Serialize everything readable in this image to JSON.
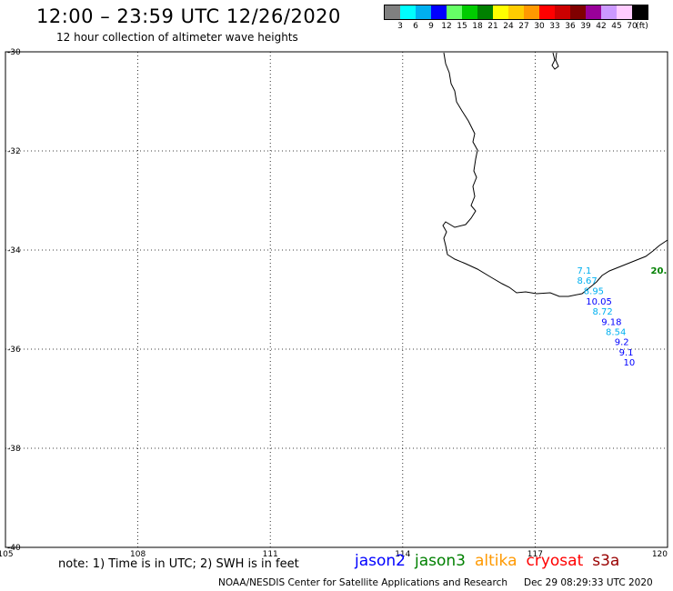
{
  "title": "12:00 – 23:59 UTC 12/26/2020",
  "subtitle": "12 hour collection of altimeter wave heights",
  "color_scale": {
    "unit": "(ft)",
    "colors": [
      "#808080",
      "#00ffff",
      "#00b0f0",
      "#0000ff",
      "#66ff66",
      "#00cc00",
      "#008000",
      "#ffff00",
      "#ffcc00",
      "#ff9900",
      "#ff0000",
      "#cc0000",
      "#800000",
      "#990099",
      "#cc99ff",
      "#ffccff",
      "#000000"
    ],
    "labels": [
      "3",
      "6",
      "9",
      "12",
      "15",
      "18",
      "21",
      "24",
      "27",
      "30",
      "33",
      "36",
      "39",
      "42",
      "45",
      "70"
    ]
  },
  "axes": {
    "lon_ticks": [
      "105",
      "108",
      "111",
      "114",
      "117",
      "120"
    ],
    "lat_ticks": [
      "-30",
      "-32",
      "-34",
      "-36",
      "-38",
      "-40"
    ]
  },
  "observations": [
    {
      "text": "7.1",
      "color": "#00b0f0",
      "lon": 117.95,
      "lat": -34.48
    },
    {
      "text": "20.",
      "color": "#008000",
      "lon": 119.62,
      "lat": -34.48,
      "size": 14
    },
    {
      "text": "8.67",
      "color": "#00b0f0",
      "lon": 117.95,
      "lat": -34.68
    },
    {
      "text": "8.95",
      "color": "#00b0f0",
      "lon": 118.1,
      "lat": -34.89
    },
    {
      "text": "10.05",
      "color": "#0000ff",
      "lon": 118.15,
      "lat": -35.1
    },
    {
      "text": "8.72",
      "color": "#00b0f0",
      "lon": 118.3,
      "lat": -35.3
    },
    {
      "text": "9.18",
      "color": "#0000ff",
      "lon": 118.5,
      "lat": -35.51
    },
    {
      "text": "8.54",
      "color": "#00b0f0",
      "lon": 118.6,
      "lat": -35.72
    },
    {
      "text": "9.2",
      "color": "#0000ff",
      "lon": 118.8,
      "lat": -35.92
    },
    {
      "text": "9.1",
      "color": "#0000ff",
      "lon": 118.9,
      "lat": -36.13
    },
    {
      "text": "10",
      "color": "#0000ff",
      "lon": 119.0,
      "lat": -36.33
    }
  ],
  "note": "note:  1) Time is in UTC;  2) SWH is in feet",
  "satellites": [
    {
      "name": "jason2",
      "color": "#0000ff"
    },
    {
      "name": "jason3",
      "color": "#008000"
    },
    {
      "name": "altika",
      "color": "#ff9900"
    },
    {
      "name": "cryosat",
      "color": "#ff0000"
    },
    {
      "name": "s3a",
      "color": "#990000"
    }
  ],
  "credit": "NOAA/NESDIS Center for Satellite Applications and Research",
  "timestamp": "Dec 29 08:29:33 UTC 2020"
}
